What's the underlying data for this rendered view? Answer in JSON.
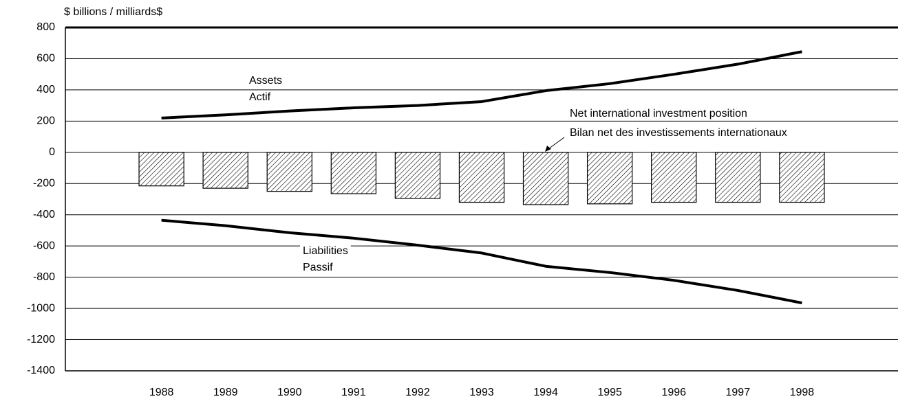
{
  "chart_data": {
    "type": "bar",
    "y_label": "$ billions / milliards$",
    "categories": [
      "1988",
      "1989",
      "1990",
      "1991",
      "1992",
      "1993",
      "1994",
      "1995",
      "1996",
      "1997",
      "1998"
    ],
    "series": [
      {
        "name": "Net international investment position",
        "type": "bar",
        "color": "#000000",
        "values": [
          -215,
          -230,
          -250,
          -265,
          -295,
          -320,
          -335,
          -330,
          -320,
          -320,
          -320
        ]
      },
      {
        "name": "Assets",
        "type": "line",
        "color": "#000000",
        "values": [
          220,
          240,
          265,
          285,
          300,
          325,
          395,
          440,
          500,
          565,
          645
        ]
      },
      {
        "name": "Liabilities",
        "type": "line",
        "color": "#000000",
        "values": [
          -435,
          -470,
          -515,
          -550,
          -595,
          -645,
          -730,
          -770,
          -820,
          -885,
          -965
        ]
      }
    ],
    "annotations": [
      "Assets",
      "Actif",
      "Liabilities",
      "Passif",
      "Net international investment position",
      "Bilan net des investissements internationaux"
    ],
    "ylim": [
      -1400,
      800
    ],
    "yticks": [
      -1400,
      -1200,
      -1000,
      -800,
      -600,
      -400,
      -200,
      0,
      200,
      400,
      600,
      800
    ],
    "grid": true
  }
}
